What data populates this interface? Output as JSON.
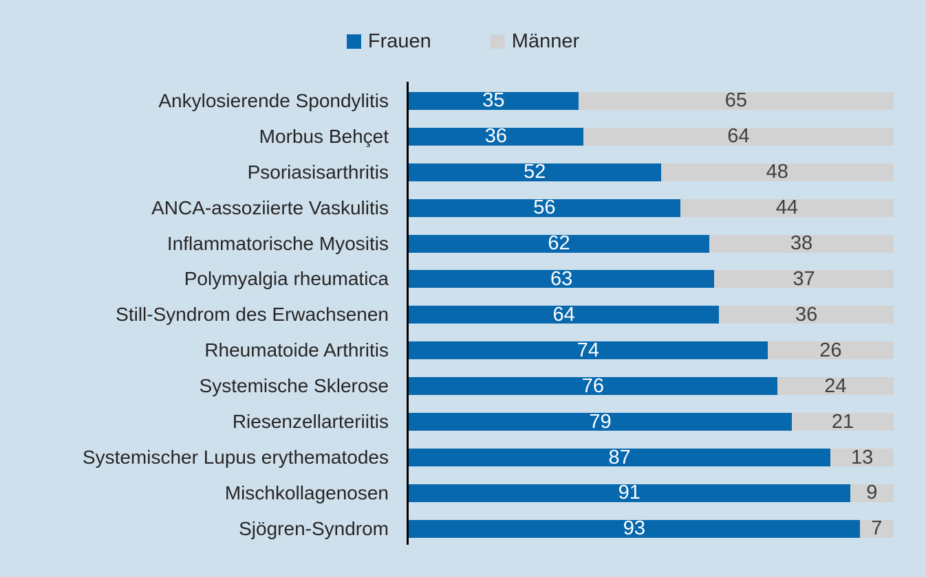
{
  "legend": {
    "items": [
      {
        "label": "Frauen"
      },
      {
        "label": "Männer"
      }
    ]
  },
  "colors": {
    "background": "#cfe0ed",
    "frauen": "#0768ad",
    "maenner": "#d2d2d2",
    "label_text": "#262626",
    "value_text_on_blue": "#ffffff",
    "value_text_on_gray": "#404040",
    "axis": "#000000"
  },
  "chart_data": {
    "type": "bar",
    "orientation": "horizontal",
    "stacked": true,
    "unit": "percent",
    "xlim": [
      0,
      100
    ],
    "grid": false,
    "legend_position": "top",
    "value_labels": "inside-center",
    "categories": [
      "Ankylosierende Spondylitis",
      "Morbus Behçet",
      "Psoriasisarthritis",
      "ANCA-assoziierte Vaskulitis",
      "Inflammatorische Myositis",
      "Polymyalgia rheumatica",
      "Still-Syndrom des Erwachsenen",
      "Rheumatoide Arthritis",
      "Systemische Sklerose",
      "Riesenzellarteriitis",
      "Systemischer Lupus erythematodes",
      "Mischkollagenosen",
      "Sjögren-Syndrom"
    ],
    "series": [
      {
        "name": "Frauen",
        "values": [
          35,
          36,
          52,
          56,
          62,
          63,
          64,
          74,
          76,
          79,
          87,
          91,
          93
        ]
      },
      {
        "name": "Männer",
        "values": [
          65,
          64,
          48,
          44,
          38,
          37,
          36,
          26,
          24,
          21,
          13,
          9,
          7
        ]
      }
    ]
  }
}
